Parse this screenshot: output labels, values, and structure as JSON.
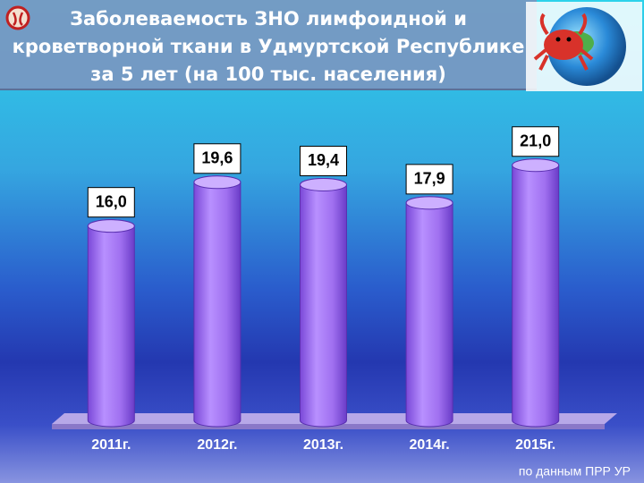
{
  "chart_data": {
    "type": "bar",
    "title": [
      "Заболеваемость ЗНО лимфоидной и",
      "кроветворной ткани в Удмуртской Республике",
      "за 5 лет (на 100 тыс. населения)"
    ],
    "categories": [
      "2011г.",
      "2012г.",
      "2013г.",
      "2014г.",
      "2015г."
    ],
    "values": [
      16.0,
      19.6,
      19.4,
      17.9,
      21.0
    ],
    "value_labels": [
      "16,0",
      "19,6",
      "19,4",
      "17,9",
      "21,0"
    ],
    "color": "#a070f0",
    "ylim": [
      0,
      24
    ],
    "source": "по данным ПРР УР"
  }
}
